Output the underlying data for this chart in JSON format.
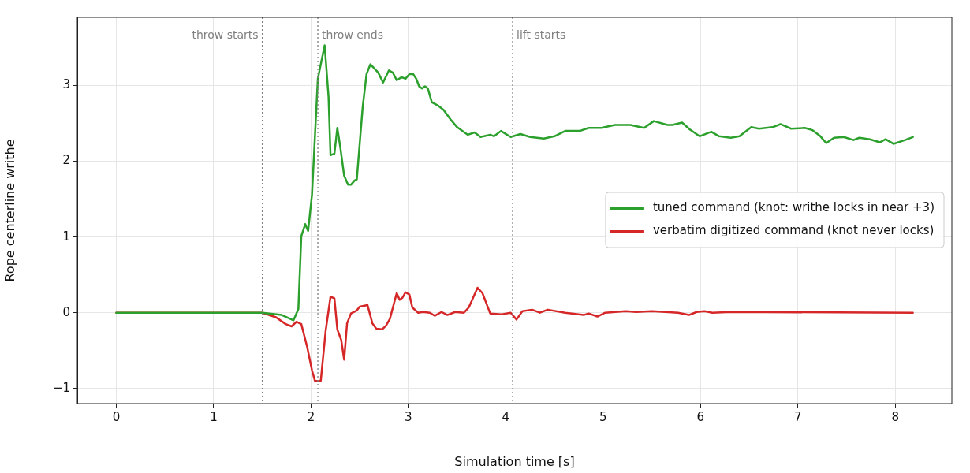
{
  "chart_data": {
    "type": "line",
    "xlabel": "Simulation time [s]",
    "ylabel": "Rope centerline writhe",
    "xlim": [
      -0.4,
      8.58
    ],
    "ylim": [
      -1.2,
      3.9
    ],
    "xticks": [
      0,
      1,
      2,
      3,
      4,
      5,
      6,
      7,
      8
    ],
    "yticks": [
      -1,
      0,
      1,
      2,
      3
    ],
    "grid": true,
    "legend": "right",
    "marker": "none",
    "line_style": "solid",
    "ref_lines": [
      {
        "axis": "x",
        "value": 1.5,
        "label": "throw starts",
        "color": "#808080",
        "line_style": "dotted"
      },
      {
        "axis": "x",
        "value": 2.07,
        "label": "throw ends",
        "color": "#808080",
        "line_style": "dotted"
      },
      {
        "axis": "x",
        "value": 4.07,
        "label": "lift starts",
        "color": "#808080",
        "line_style": "dotted"
      }
    ],
    "series": [
      {
        "name": "tuned command (knot: writhe locks in near +3)",
        "color": "#2ca02c",
        "x": [
          0,
          1.5,
          1.7,
          1.82,
          1.87,
          1.9,
          1.94,
          1.97,
          2.01,
          2.07,
          2.14,
          2.18,
          2.2,
          2.24,
          2.27,
          2.3,
          2.34,
          2.38,
          2.41,
          2.45,
          2.47,
          2.53,
          2.57,
          2.61,
          2.69,
          2.74,
          2.8,
          2.84,
          2.88,
          2.93,
          2.97,
          3.01,
          3.05,
          3.08,
          3.11,
          3.14,
          3.17,
          3.2,
          3.24,
          3.31,
          3.36,
          3.44,
          3.5,
          3.61,
          3.68,
          3.74,
          3.84,
          3.88,
          3.95,
          4.05,
          4.15,
          4.25,
          4.39,
          4.5,
          4.61,
          4.76,
          4.85,
          4.98,
          5.12,
          5.28,
          5.42,
          5.52,
          5.66,
          5.71,
          5.81,
          5.89,
          5.99,
          6.11,
          6.19,
          6.31,
          6.4,
          6.52,
          6.6,
          6.74,
          6.82,
          6.93,
          7.07,
          7.15,
          7.23,
          7.29,
          7.37,
          7.47,
          7.57,
          7.63,
          7.74,
          7.84,
          7.9,
          7.98,
          8.1,
          8.18
        ],
        "values": [
          0,
          0,
          -0.03,
          -0.1,
          0.05,
          1.01,
          1.17,
          1.08,
          1.56,
          3.09,
          3.53,
          2.85,
          2.08,
          2.1,
          2.44,
          2.19,
          1.81,
          1.69,
          1.69,
          1.75,
          1.76,
          2.71,
          3.15,
          3.28,
          3.17,
          3.04,
          3.2,
          3.17,
          3.07,
          3.11,
          3.09,
          3.15,
          3.15,
          3.09,
          2.99,
          2.96,
          2.99,
          2.96,
          2.78,
          2.73,
          2.68,
          2.54,
          2.45,
          2.35,
          2.38,
          2.32,
          2.35,
          2.33,
          2.4,
          2.32,
          2.36,
          2.32,
          2.3,
          2.33,
          2.4,
          2.4,
          2.44,
          2.44,
          2.48,
          2.48,
          2.44,
          2.53,
          2.48,
          2.48,
          2.51,
          2.42,
          2.33,
          2.39,
          2.33,
          2.31,
          2.33,
          2.45,
          2.43,
          2.45,
          2.49,
          2.43,
          2.44,
          2.41,
          2.33,
          2.24,
          2.31,
          2.32,
          2.28,
          2.31,
          2.29,
          2.25,
          2.29,
          2.23,
          2.28,
          2.32
        ]
      },
      {
        "name": "verbatim digitized command (knot never locks)",
        "color": "#d62728",
        "x": [
          0,
          1.5,
          1.64,
          1.74,
          1.8,
          1.85,
          1.9,
          1.96,
          2.01,
          2.04,
          2.1,
          2.15,
          2.2,
          2.24,
          2.27,
          2.31,
          2.34,
          2.37,
          2.41,
          2.47,
          2.5,
          2.58,
          2.63,
          2.67,
          2.73,
          2.77,
          2.81,
          2.88,
          2.91,
          2.94,
          2.97,
          3.01,
          3.04,
          3.1,
          3.15,
          3.22,
          3.27,
          3.34,
          3.4,
          3.48,
          3.57,
          3.62,
          3.71,
          3.76,
          3.84,
          3.96,
          4.05,
          4.11,
          4.17,
          4.27,
          4.35,
          4.43,
          4.61,
          4.8,
          4.85,
          4.94,
          5.02,
          5.23,
          5.34,
          5.5,
          5.77,
          5.88,
          5.96,
          6.04,
          6.12,
          6.31,
          8.18
        ],
        "values": [
          0,
          0,
          -0.06,
          -0.15,
          -0.18,
          -0.12,
          -0.15,
          -0.45,
          -0.76,
          -0.9,
          -0.9,
          -0.24,
          0.21,
          0.19,
          -0.22,
          -0.36,
          -0.62,
          -0.14,
          -0.01,
          0.03,
          0.08,
          0.1,
          -0.14,
          -0.21,
          -0.22,
          -0.17,
          -0.08,
          0.26,
          0.17,
          0.2,
          0.27,
          0.24,
          0.07,
          0,
          0.01,
          0,
          -0.04,
          0.01,
          -0.03,
          0.01,
          0,
          0.07,
          0.33,
          0.26,
          -0.01,
          -0.02,
          0,
          -0.09,
          0.02,
          0.04,
          0,
          0.04,
          0,
          -0.03,
          -0.01,
          -0.05,
          0,
          0.02,
          0.01,
          0.02,
          0,
          -0.03,
          0.01,
          0.02,
          0,
          0.01,
          0
        ]
      }
    ]
  }
}
